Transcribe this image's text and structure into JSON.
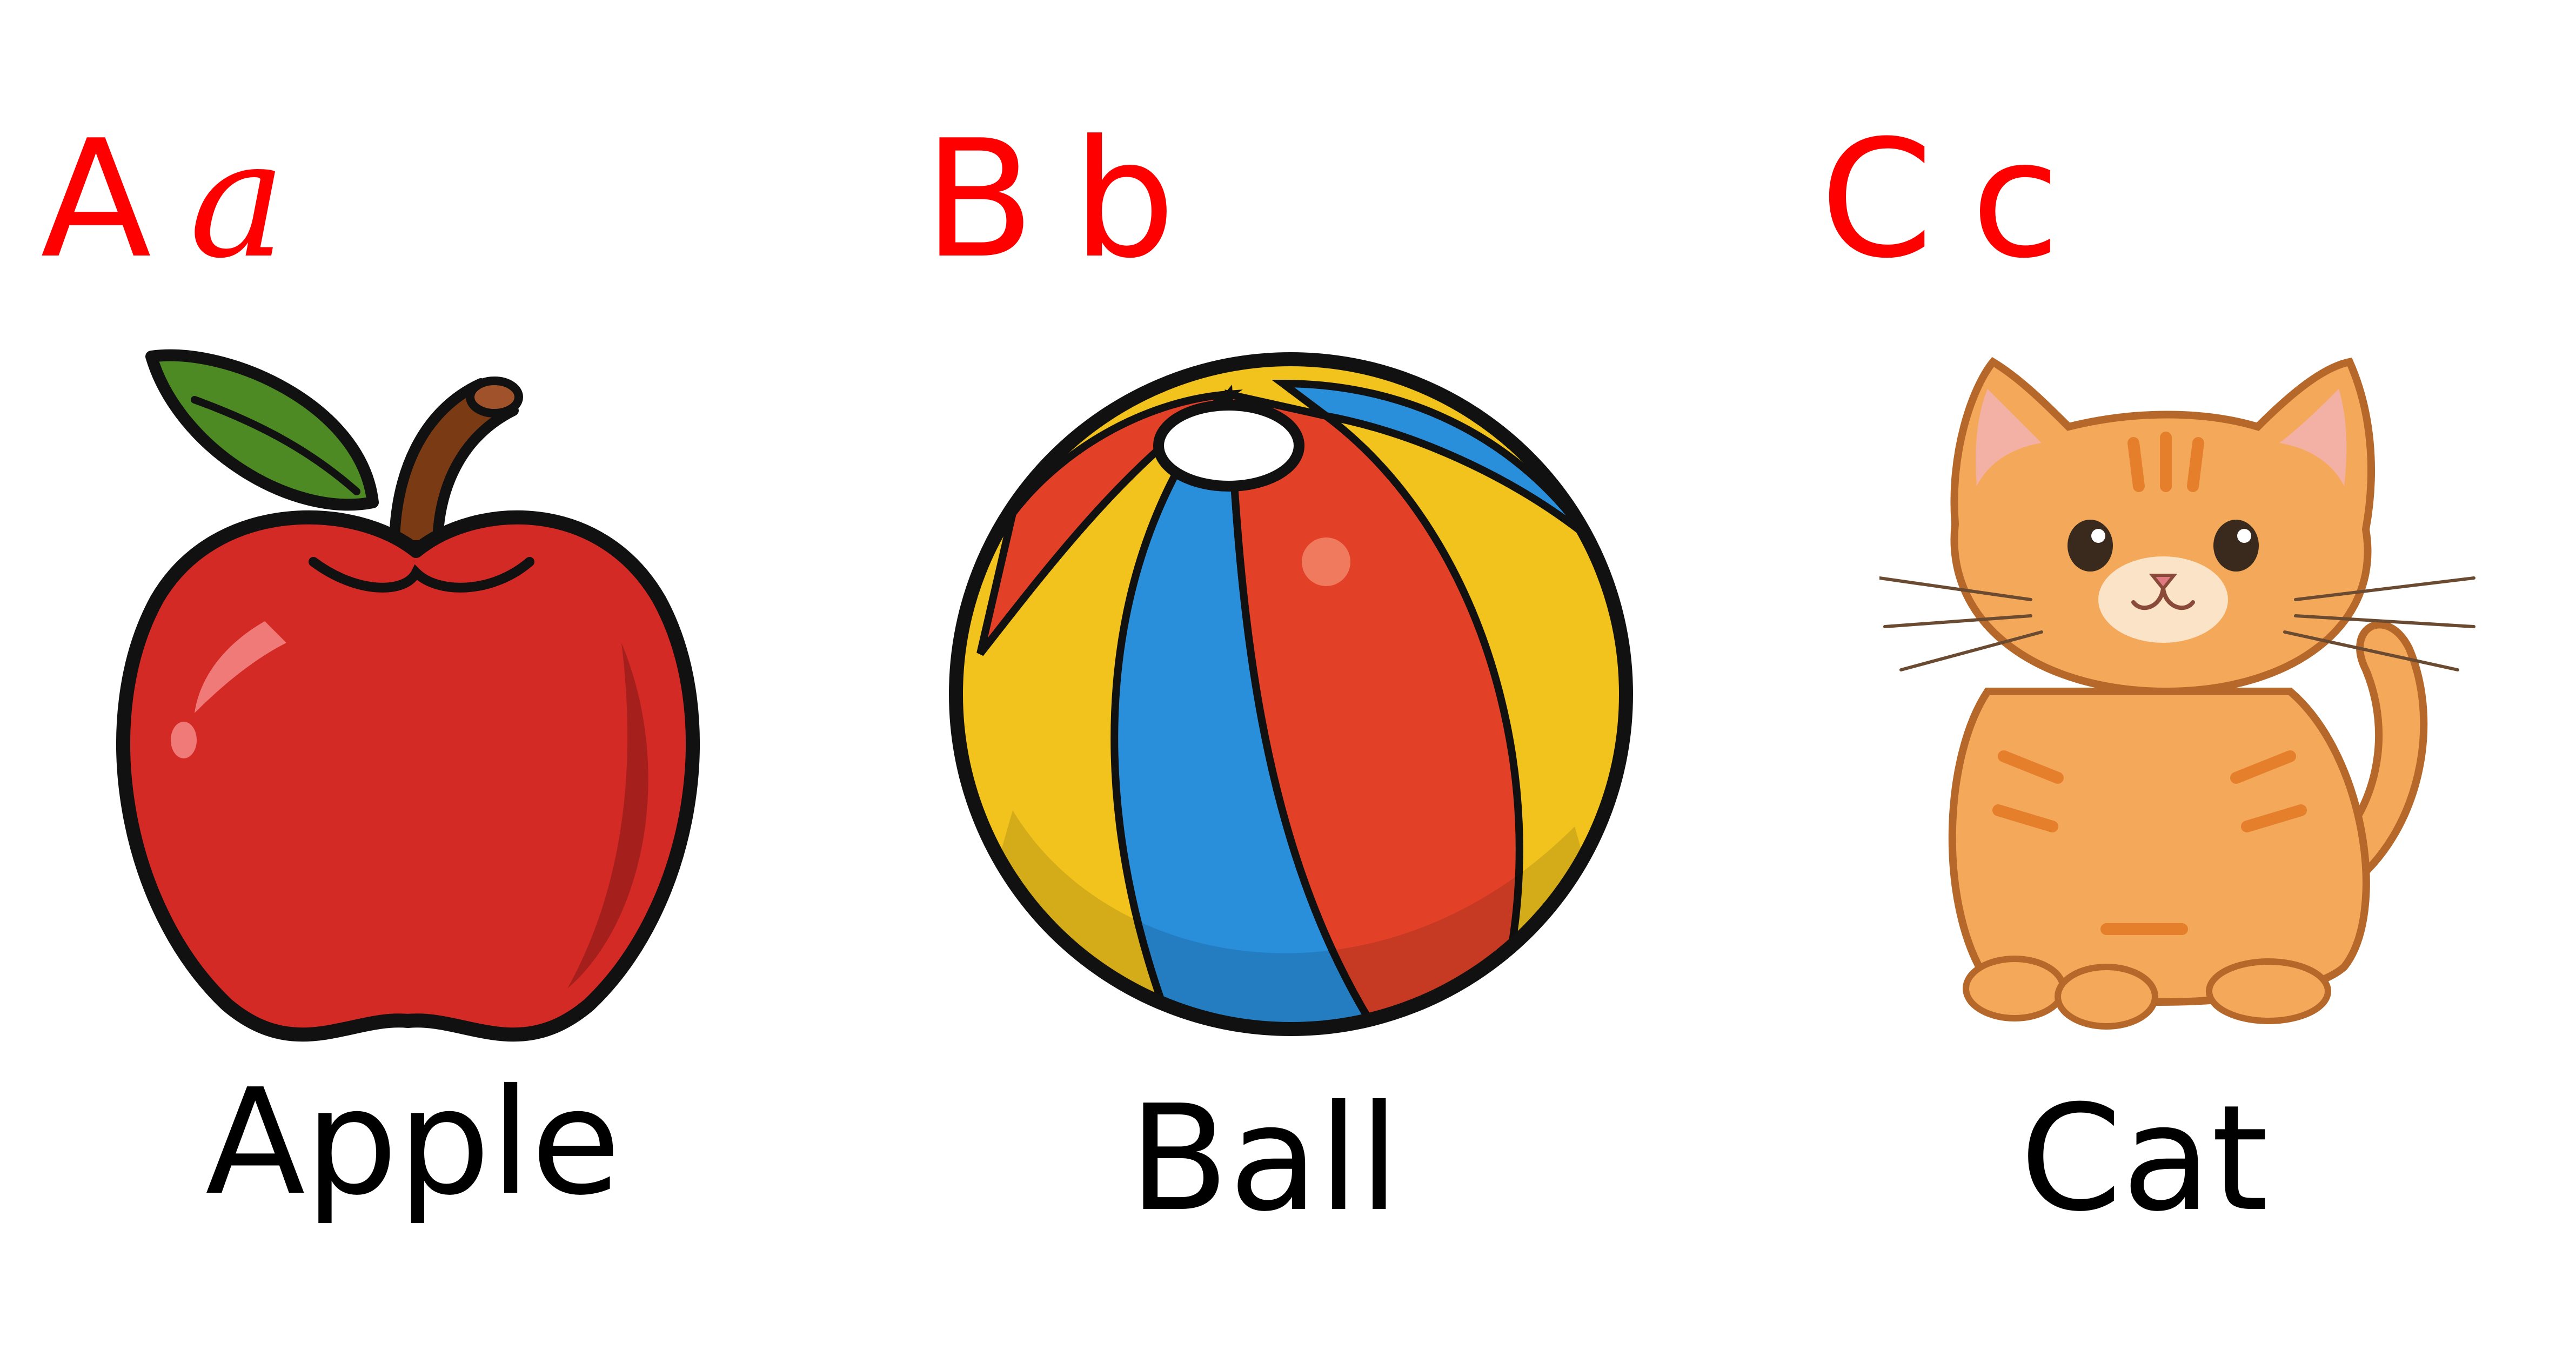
{
  "cards": [
    {
      "letter_upper": "A",
      "letter_lower": "a",
      "word": "Apple",
      "icon": "apple-icon"
    },
    {
      "letter_upper": "B",
      "letter_lower": "b",
      "word": "Ball",
      "icon": "beach-ball-icon"
    },
    {
      "letter_upper": "C",
      "letter_lower": "c",
      "word": "Cat",
      "icon": "cat-icon"
    }
  ],
  "colors": {
    "letters": "#ff0000",
    "words": "#000000",
    "background": "#ffffff"
  }
}
